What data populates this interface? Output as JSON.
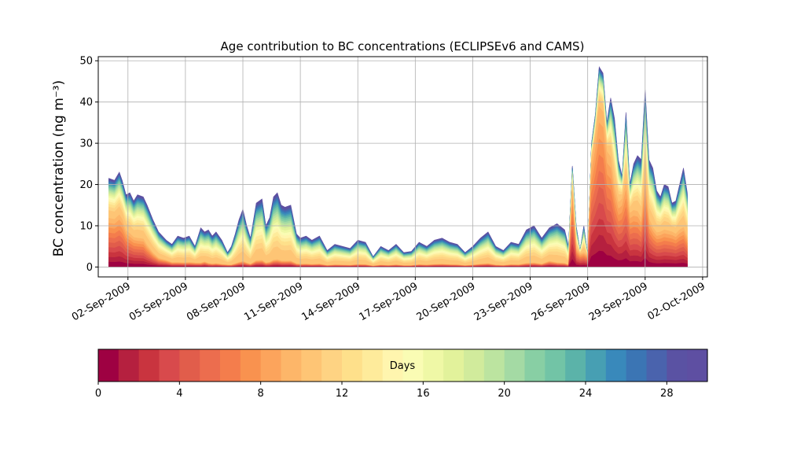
{
  "chart_data": {
    "type": "area",
    "stacked": true,
    "title": "Age contribution to BC concentrations (ECLIPSEv6 and CAMS)",
    "ylabel": "BC concentration (ng m⁻³)",
    "xlabel": "",
    "ylim": [
      -2.4,
      51
    ],
    "y_ticks": [
      0,
      10,
      20,
      30,
      40,
      50
    ],
    "xlim": [
      -1.55,
      30.25
    ],
    "x_ticks": [
      {
        "day": 0,
        "label": "02-Sep-2009"
      },
      {
        "day": 3,
        "label": "05-Sep-2009"
      },
      {
        "day": 6,
        "label": "08-Sep-2009"
      },
      {
        "day": 9,
        "label": "11-Sep-2009"
      },
      {
        "day": 12,
        "label": "14-Sep-2009"
      },
      {
        "day": 15,
        "label": "17-Sep-2009"
      },
      {
        "day": 18,
        "label": "20-Sep-2009"
      },
      {
        "day": 21,
        "label": "23-Sep-2009"
      },
      {
        "day": 24,
        "label": "26-Sep-2009"
      },
      {
        "day": 27,
        "label": "29-Sep-2009"
      },
      {
        "day": 30,
        "label": "02-Oct-2009"
      }
    ],
    "grid": true,
    "x_day_of_02_sep_2009": [
      -1.0,
      -0.7,
      -0.45,
      -0.3,
      -0.1,
      0.1,
      0.3,
      0.5,
      0.8,
      1.0,
      1.3,
      1.6,
      2.0,
      2.3,
      2.6,
      2.9,
      3.2,
      3.5,
      3.8,
      4.0,
      4.2,
      4.4,
      4.6,
      4.9,
      5.2,
      5.4,
      5.6,
      5.8,
      6.0,
      6.2,
      6.4,
      6.7,
      7.0,
      7.2,
      7.4,
      7.6,
      7.8,
      8.0,
      8.2,
      8.5,
      8.8,
      9.0,
      9.3,
      9.6,
      10.0,
      10.4,
      10.8,
      11.2,
      11.6,
      12.0,
      12.4,
      12.8,
      13.2,
      13.6,
      14.0,
      14.4,
      14.8,
      15.2,
      15.6,
      16.0,
      16.4,
      16.8,
      17.2,
      17.6,
      18.0,
      18.4,
      18.8,
      19.2,
      19.6,
      20.0,
      20.4,
      20.8,
      21.2,
      21.6,
      22.0,
      22.4,
      22.8,
      23.0,
      23.2,
      23.4,
      23.6,
      23.8,
      24.0,
      24.2,
      24.4,
      24.6,
      24.8,
      25.0,
      25.2,
      25.4,
      25.6,
      25.8,
      26.0,
      26.2,
      26.4,
      26.6,
      26.8,
      27.0,
      27.2,
      27.4,
      27.6,
      27.8,
      28.0,
      28.2,
      28.4,
      28.6,
      28.8,
      29.0,
      29.2
    ],
    "total_concentration": [
      21.5,
      21.0,
      23.0,
      21.0,
      17.5,
      18.0,
      16.0,
      17.5,
      17.0,
      15.0,
      11.5,
      8.5,
      6.5,
      5.5,
      7.5,
      7.0,
      7.5,
      5.0,
      9.5,
      8.5,
      9.0,
      7.5,
      8.5,
      6.5,
      3.5,
      5.0,
      8.0,
      11.5,
      14.0,
      10.0,
      7.0,
      15.5,
      16.5,
      10.0,
      12.0,
      17.0,
      18.0,
      15.0,
      14.5,
      15.0,
      8.0,
      7.0,
      7.5,
      6.5,
      7.5,
      4.0,
      5.5,
      5.0,
      4.5,
      6.5,
      6.0,
      2.5,
      5.0,
      4.0,
      5.5,
      3.5,
      3.8,
      6.0,
      5.0,
      6.5,
      7.0,
      6.0,
      5.5,
      3.5,
      5.0,
      7.0,
      8.5,
      5.0,
      4.0,
      6.0,
      5.5,
      9.0,
      10.0,
      7.0,
      9.5,
      10.5,
      9.0,
      5.0,
      24.5,
      10.0,
      4.0,
      10.0,
      3.0,
      30.0,
      37.0,
      48.5,
      47.0,
      35.0,
      41.0,
      36.0,
      26.0,
      22.0,
      37.5,
      20.0,
      25.0,
      27.0,
      26.0,
      43.0,
      26.0,
      24.0,
      18.5,
      17.0,
      20.0,
      19.5,
      15.5,
      16.0,
      20.0,
      24.0,
      18.0
    ],
    "fresh_fraction_0_to_10_days": [
      0.55,
      0.55,
      0.55,
      0.55,
      0.5,
      0.45,
      0.45,
      0.4,
      0.4,
      0.35,
      0.3,
      0.25,
      0.25,
      0.2,
      0.15,
      0.15,
      0.15,
      0.2,
      0.1,
      0.15,
      0.1,
      0.1,
      0.1,
      0.1,
      0.15,
      0.1,
      0.1,
      0.1,
      0.1,
      0.1,
      0.1,
      0.1,
      0.1,
      0.1,
      0.1,
      0.1,
      0.1,
      0.1,
      0.1,
      0.1,
      0.1,
      0.1,
      0.1,
      0.1,
      0.1,
      0.1,
      0.1,
      0.1,
      0.1,
      0.1,
      0.1,
      0.1,
      0.1,
      0.1,
      0.1,
      0.1,
      0.1,
      0.1,
      0.1,
      0.1,
      0.1,
      0.1,
      0.1,
      0.1,
      0.1,
      0.1,
      0.1,
      0.1,
      0.1,
      0.1,
      0.1,
      0.1,
      0.1,
      0.1,
      0.15,
      0.1,
      0.1,
      0.1,
      0.75,
      0.45,
      0.8,
      0.35,
      0.9,
      0.85,
      0.85,
      0.8,
      0.8,
      0.8,
      0.65,
      0.55,
      0.6,
      0.75,
      0.55,
      0.65,
      0.55,
      0.5,
      0.45,
      0.5,
      0.45,
      0.4,
      0.45,
      0.5,
      0.45,
      0.45,
      0.55,
      0.5,
      0.45,
      0.4,
      0.4
    ],
    "colorbar": {
      "label": "Days",
      "min": 0,
      "max": 30,
      "n_bins": 30,
      "tick_values": [
        0,
        4,
        8,
        12,
        16,
        20,
        24,
        28
      ],
      "colors": [
        "#9e0142",
        "#b5203f",
        "#c9343f",
        "#d84a4c",
        "#e15d4b",
        "#ec6d4e",
        "#f47d4c",
        "#f9924f",
        "#fca45c",
        "#fdb669",
        "#fec575",
        "#fed383",
        "#fee08b",
        "#feeb9b",
        "#fff5ae",
        "#fafcb4",
        "#eff8a6",
        "#e2f29b",
        "#d1eb9c",
        "#bce4a0",
        "#a4daa4",
        "#88cfa4",
        "#72c4a6",
        "#5bb3a9",
        "#479fb3",
        "#3989bb",
        "#3b75b4",
        "#4a63ad",
        "#5a52a3",
        "#5e4fa2"
      ]
    }
  }
}
